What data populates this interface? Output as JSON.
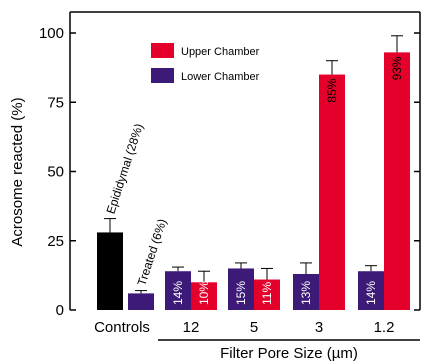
{
  "chart_data": {
    "type": "bar",
    "ylabel": "Acrosome reacted (%)",
    "xlabel": "Filter Pore Size (µm)",
    "ylim": [
      0,
      105
    ],
    "yticks": [
      0,
      25,
      50,
      75,
      100
    ],
    "grid": false,
    "legend_position": "top-center",
    "colors": {
      "upper": "#e4002b",
      "lower": "#3d1a78",
      "control": "#000000"
    },
    "controls": {
      "label": "Controls",
      "bars": [
        {
          "name": "Epididymal",
          "label": "Epididymal (28%)",
          "value": 28,
          "error": 5
        },
        {
          "name": "Treated",
          "label": "Treated (6%)",
          "value": 6,
          "error": 1
        }
      ]
    },
    "categories": [
      "12",
      "5",
      "3",
      "1.2"
    ],
    "series": [
      {
        "name": "Lower Chamber",
        "values": [
          14,
          15,
          13,
          14
        ],
        "errors": [
          1.5,
          2,
          4,
          2
        ],
        "labels": [
          "14%",
          "15%",
          "13%",
          "14%"
        ]
      },
      {
        "name": "Upper Chamber",
        "values": [
          10,
          11,
          85,
          93
        ],
        "errors": [
          4,
          4,
          5,
          6
        ],
        "labels": [
          "10%",
          "11%",
          "85%",
          "93%"
        ]
      }
    ]
  }
}
